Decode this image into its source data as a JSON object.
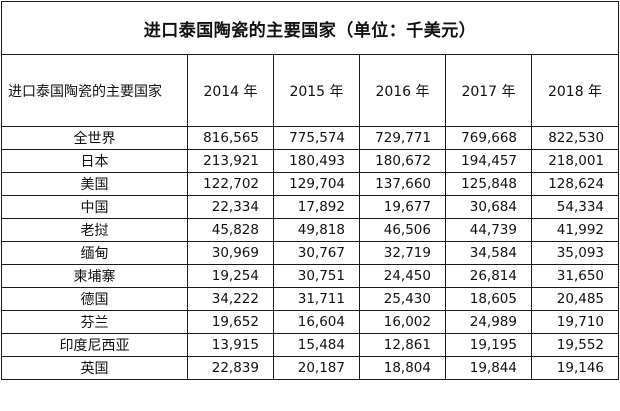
{
  "title": "进口泰国陶瓷的主要国家（单位：千美元）",
  "header": {
    "first_col": "进口泰国陶瓷的主要国家",
    "years": [
      "2014 年",
      "2015 年",
      "2016 年",
      "2017 年",
      "2018 年"
    ]
  },
  "rows": [
    {
      "country": "全世界",
      "values": [
        "816,565",
        "775,574",
        "729,771",
        "769,668",
        "822,530"
      ]
    },
    {
      "country": "日本",
      "values": [
        "213,921",
        "180,493",
        "180,672",
        "194,457",
        "218,001"
      ]
    },
    {
      "country": "美国",
      "values": [
        "122,702",
        "129,704",
        "137,660",
        "125,848",
        "128,624"
      ]
    },
    {
      "country": "中国",
      "values": [
        "22,334",
        "17,892",
        "19,677",
        "30,684",
        "54,334"
      ]
    },
    {
      "country": "老挝",
      "values": [
        "45,828",
        "49,818",
        "46,506",
        "44,739",
        "41,992"
      ]
    },
    {
      "country": "缅甸",
      "values": [
        "30,969",
        "30,767",
        "32,719",
        "34,584",
        "35,093"
      ]
    },
    {
      "country": "柬埔寨",
      "values": [
        "19,254",
        "30,751",
        "24,450",
        "26,814",
        "31,650"
      ]
    },
    {
      "country": "德国",
      "values": [
        "34,222",
        "31,711",
        "25,430",
        "18,605",
        "20,485"
      ]
    },
    {
      "country": "芬兰",
      "values": [
        "19,652",
        "16,604",
        "16,002",
        "24,989",
        "19,710"
      ]
    },
    {
      "country": "印度尼西亚",
      "values": [
        "13,915",
        "15,484",
        "12,861",
        "19,195",
        "19,552"
      ]
    },
    {
      "country": "英国",
      "values": [
        "22,839",
        "20,187",
        "18,804",
        "19,844",
        "19,146"
      ]
    }
  ]
}
